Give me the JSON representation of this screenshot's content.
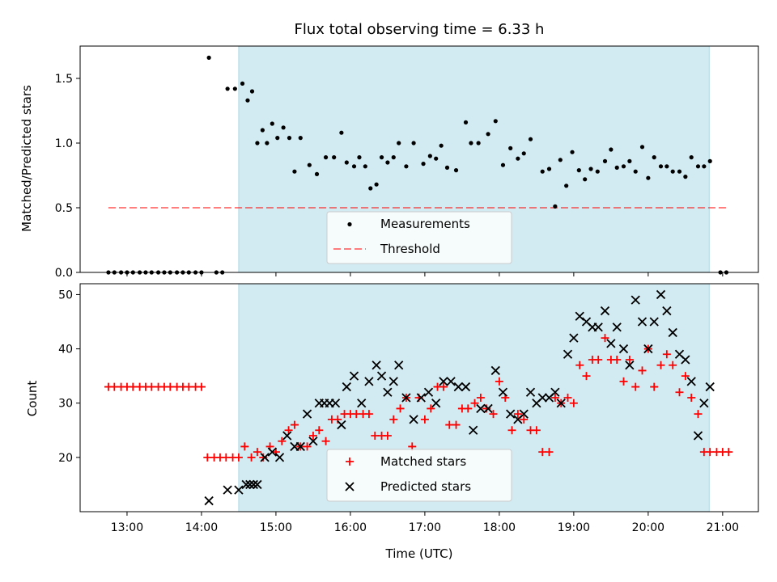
{
  "title": "Flux total observing time = 6.33 h",
  "colors": {
    "shade": "#add8e6",
    "threshold": "#ff0000",
    "matched": "#ff0000",
    "predicted": "#000000",
    "measurements": "#000000"
  },
  "chart_data": [
    {
      "type": "scatter",
      "ylabel": "Matched/Predicted stars",
      "xlim_hours": [
        12.37,
        21.48
      ],
      "ylim": [
        0,
        1.75
      ],
      "yticks": [
        0.0,
        0.5,
        1.0,
        1.5
      ],
      "ytick_labels": [
        "0.0",
        "0.5",
        "1.0",
        "1.5"
      ],
      "shaded_region_hours": [
        14.5,
        20.82
      ],
      "threshold": {
        "value": 0.5,
        "x_range_hours": [
          12.75,
          21.05
        ]
      },
      "legend": {
        "position": "lower-center",
        "entries": [
          "Measurements",
          "Threshold"
        ]
      },
      "series": [
        {
          "name": "Measurements",
          "x_hours": [
            12.75,
            12.83,
            12.92,
            13.0,
            13.08,
            13.17,
            13.25,
            13.33,
            13.42,
            13.5,
            13.58,
            13.67,
            13.75,
            13.83,
            13.92,
            14.0,
            14.1,
            14.2,
            14.28,
            14.35,
            14.45,
            14.55,
            14.62,
            14.68,
            14.75,
            14.82,
            14.88,
            14.95,
            15.02,
            15.1,
            15.18,
            15.25,
            15.33,
            15.45,
            15.55,
            15.67,
            15.78,
            15.88,
            15.95,
            16.05,
            16.12,
            16.2,
            16.27,
            16.35,
            16.42,
            16.5,
            16.58,
            16.65,
            16.75,
            16.85,
            16.98,
            17.07,
            17.15,
            17.22,
            17.3,
            17.42,
            17.55,
            17.62,
            17.72,
            17.85,
            17.95,
            18.05,
            18.15,
            18.25,
            18.33,
            18.42,
            18.58,
            18.67,
            18.75,
            18.82,
            18.9,
            18.98,
            19.07,
            19.15,
            19.23,
            19.32,
            19.42,
            19.5,
            19.58,
            19.67,
            19.75,
            19.83,
            19.92,
            20.0,
            20.08,
            20.17,
            20.25,
            20.33,
            20.42,
            20.5,
            20.58,
            20.67,
            20.75,
            20.83,
            20.97,
            21.05
          ],
          "y": [
            0,
            0,
            0,
            0,
            0,
            0,
            0,
            0,
            0,
            0,
            0,
            0,
            0,
            0,
            0,
            0,
            1.66,
            0,
            0,
            1.42,
            1.42,
            1.46,
            1.33,
            1.4,
            1.0,
            1.1,
            1.0,
            1.15,
            1.04,
            1.12,
            1.04,
            0.78,
            1.04,
            0.83,
            0.76,
            0.89,
            0.89,
            1.08,
            0.85,
            0.82,
            0.89,
            0.82,
            0.65,
            0.68,
            0.89,
            0.85,
            0.89,
            1.0,
            0.82,
            1.0,
            0.84,
            0.9,
            0.88,
            0.98,
            0.81,
            0.79,
            1.16,
            1.0,
            1.0,
            1.07,
            1.17,
            0.83,
            0.96,
            0.88,
            0.92,
            1.03,
            0.78,
            0.8,
            0.51,
            0.87,
            0.67,
            0.93,
            0.79,
            0.72,
            0.8,
            0.78,
            0.86,
            0.95,
            0.81,
            0.82,
            0.86,
            0.78,
            0.97,
            0.73,
            0.89,
            0.82,
            0.82,
            0.78,
            0.78,
            0.74,
            0.89,
            0.82,
            0.82,
            0.86,
            0,
            0
          ]
        }
      ]
    },
    {
      "type": "scatter",
      "ylabel": "Count",
      "xlabel": "Time (UTC)",
      "xlim_hours": [
        12.37,
        21.48
      ],
      "ylim": [
        10,
        52
      ],
      "yticks": [
        20,
        30,
        40,
        50
      ],
      "ytick_labels": [
        "20",
        "30",
        "40",
        "50"
      ],
      "xticks_hours": [
        13,
        14,
        15,
        16,
        17,
        18,
        19,
        20,
        21
      ],
      "xtick_labels": [
        "13:00",
        "14:00",
        "15:00",
        "16:00",
        "17:00",
        "18:00",
        "19:00",
        "20:00",
        "21:00"
      ],
      "shaded_region_hours": [
        14.5,
        20.82
      ],
      "legend": {
        "position": "lower-center",
        "entries": [
          "Matched stars",
          "Predicted stars"
        ]
      },
      "series": [
        {
          "name": "Matched stars",
          "marker": "plus",
          "x_hours": [
            12.75,
            12.83,
            12.92,
            13.0,
            13.08,
            13.17,
            13.25,
            13.33,
            13.42,
            13.5,
            13.58,
            13.67,
            13.75,
            13.83,
            13.92,
            14.0,
            14.08,
            14.17,
            14.25,
            14.33,
            14.42,
            14.5,
            14.58,
            14.67,
            14.75,
            14.83,
            14.92,
            15.0,
            15.08,
            15.17,
            15.25,
            15.33,
            15.42,
            15.5,
            15.58,
            15.67,
            15.75,
            15.83,
            15.92,
            16.0,
            16.08,
            16.17,
            16.25,
            16.33,
            16.42,
            16.5,
            16.58,
            16.67,
            16.75,
            16.83,
            16.92,
            17.0,
            17.08,
            17.17,
            17.25,
            17.33,
            17.42,
            17.5,
            17.58,
            17.67,
            17.75,
            17.83,
            17.92,
            18.0,
            18.08,
            18.17,
            18.25,
            18.33,
            18.42,
            18.5,
            18.58,
            18.67,
            18.75,
            18.83,
            18.92,
            19.0,
            19.08,
            19.17,
            19.25,
            19.33,
            19.42,
            19.5,
            19.58,
            19.67,
            19.75,
            19.83,
            19.92,
            20.0,
            20.08,
            20.17,
            20.25,
            20.33,
            20.42,
            20.5,
            20.58,
            20.67,
            20.75,
            20.83,
            20.92,
            21.0,
            21.08
          ],
          "y": [
            33,
            33,
            33,
            33,
            33,
            33,
            33,
            33,
            33,
            33,
            33,
            33,
            33,
            33,
            33,
            33,
            20,
            20,
            20,
            20,
            20,
            20,
            22,
            20,
            21,
            20,
            22,
            21,
            23,
            25,
            26,
            22,
            22,
            24,
            25,
            23,
            27,
            27,
            28,
            28,
            28,
            28,
            28,
            24,
            24,
            24,
            27,
            29,
            31,
            22,
            31,
            27,
            29,
            33,
            33,
            26,
            26,
            29,
            29,
            30,
            31,
            29,
            28,
            34,
            31,
            25,
            28,
            27,
            25,
            25,
            21,
            21,
            31,
            30,
            31,
            30,
            37,
            35,
            38,
            38,
            42,
            38,
            38,
            34,
            38,
            33,
            36,
            40,
            33,
            37,
            39,
            37,
            32,
            35,
            31,
            28,
            21,
            21,
            21,
            21,
            21
          ]
        },
        {
          "name": "Predicted stars",
          "marker": "x",
          "x_hours": [
            14.1,
            14.35,
            14.5,
            14.6,
            14.65,
            14.7,
            14.75,
            14.85,
            14.95,
            15.05,
            15.15,
            15.25,
            15.33,
            15.42,
            15.5,
            15.58,
            15.65,
            15.72,
            15.8,
            15.88,
            15.95,
            16.05,
            16.15,
            16.25,
            16.35,
            16.42,
            16.5,
            16.58,
            16.65,
            16.75,
            16.85,
            16.95,
            17.05,
            17.15,
            17.25,
            17.35,
            17.45,
            17.55,
            17.65,
            17.75,
            17.85,
            17.95,
            18.05,
            18.15,
            18.25,
            18.33,
            18.42,
            18.5,
            18.58,
            18.67,
            18.75,
            18.83,
            18.92,
            19.0,
            19.08,
            19.17,
            19.25,
            19.33,
            19.42,
            19.5,
            19.58,
            19.67,
            19.75,
            19.83,
            19.92,
            20.0,
            20.08,
            20.17,
            20.25,
            20.33,
            20.42,
            20.5,
            20.58,
            20.67,
            20.75,
            20.83
          ],
          "y": [
            12,
            14,
            14,
            15,
            15,
            15,
            15,
            20,
            21,
            20,
            24,
            22,
            22,
            28,
            23,
            30,
            30,
            30,
            30,
            26,
            33,
            35,
            30,
            34,
            37,
            35,
            32,
            34,
            37,
            31,
            27,
            31,
            32,
            30,
            34,
            34,
            33,
            33,
            25,
            29,
            29,
            36,
            32,
            28,
            27,
            28,
            32,
            30,
            31,
            31,
            32,
            30,
            39,
            42,
            46,
            45,
            44,
            44,
            47,
            41,
            44,
            40,
            37,
            49,
            45,
            40,
            45,
            50,
            47,
            43,
            39,
            38,
            34,
            24,
            30,
            33
          ]
        }
      ]
    }
  ]
}
